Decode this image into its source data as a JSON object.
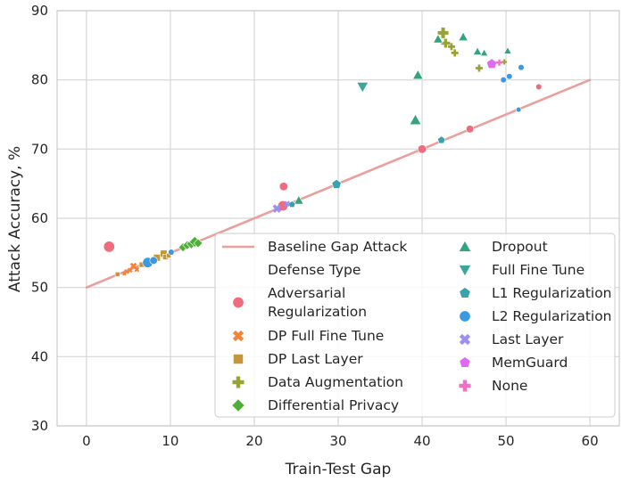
{
  "chart_data": {
    "type": "scatter",
    "xlabel": "Train-Test Gap",
    "ylabel": "Attack Accuracy, %",
    "xlim": [
      -3.5,
      63.5
    ],
    "ylim": [
      30,
      90
    ],
    "xticks": [
      0,
      10,
      20,
      30,
      40,
      50,
      60
    ],
    "yticks": [
      30,
      40,
      50,
      60,
      70,
      80,
      90
    ],
    "grid": true,
    "legend_position": "bottom-right",
    "baseline": {
      "name": "Baseline Gap Attack",
      "color": "#e9a09c",
      "points": [
        [
          0,
          50
        ],
        [
          60,
          80
        ]
      ]
    },
    "legend_header": "Defense Type",
    "series": [
      {
        "name": "Adversarial Regularization",
        "label_lines": [
          "Adversarial",
          "Regularization"
        ],
        "marker": "circle",
        "color": "#ef6b7e",
        "points": [
          [
            2.7,
            55.9,
            13
          ],
          [
            23.5,
            64.6,
            10
          ],
          [
            23.4,
            61.8,
            12
          ],
          [
            40.0,
            70.0,
            10
          ],
          [
            45.7,
            72.9,
            9
          ],
          [
            53.9,
            79.0,
            7
          ]
        ]
      },
      {
        "name": "DP Full Fine Tune",
        "label_lines": [
          "DP Full Fine Tune"
        ],
        "marker": "x",
        "color": "#f0843a",
        "points": [
          [
            4.8,
            52.3,
            6
          ],
          [
            5.2,
            52.5,
            6
          ],
          [
            5.6,
            53.1,
            8
          ],
          [
            6.0,
            52.6,
            6
          ],
          [
            4.5,
            52.0,
            5
          ]
        ]
      },
      {
        "name": "DP Last Layer",
        "label_lines": [
          "DP Last Layer"
        ],
        "marker": "square",
        "color": "#c4973a",
        "points": [
          [
            3.7,
            51.9,
            6
          ],
          [
            6.6,
            53.3,
            7
          ],
          [
            8.4,
            54.3,
            9
          ],
          [
            9.2,
            54.9,
            9
          ],
          [
            9.4,
            54.4,
            7
          ],
          [
            9.8,
            54.6,
            6
          ]
        ]
      },
      {
        "name": "Data Augmentation",
        "label_lines": [
          "Data Augmentation"
        ],
        "marker": "plus",
        "color": "#99a334",
        "points": [
          [
            42.5,
            86.8,
            12
          ],
          [
            42.8,
            85.3,
            10
          ],
          [
            43.5,
            84.8,
            8
          ],
          [
            43.9,
            83.9,
            8
          ],
          [
            46.8,
            81.7,
            8
          ],
          [
            49.8,
            82.6,
            6
          ]
        ]
      },
      {
        "name": "Differential Privacy",
        "label_lines": [
          "Differential Privacy"
        ],
        "marker": "diamond",
        "color": "#4fae3a",
        "points": [
          [
            11.5,
            55.8,
            9
          ],
          [
            12.0,
            56.1,
            9
          ],
          [
            12.5,
            56.3,
            10
          ],
          [
            12.9,
            56.6,
            11
          ],
          [
            13.3,
            56.4,
            9
          ]
        ]
      },
      {
        "name": "Dropout",
        "label_lines": [
          "Dropout"
        ],
        "marker": "triangle",
        "color": "#36a37e",
        "points": [
          [
            25.3,
            62.6,
            10
          ],
          [
            39.2,
            74.2,
            12
          ],
          [
            39.5,
            80.7,
            11
          ],
          [
            41.9,
            85.9,
            10
          ],
          [
            44.9,
            86.2,
            10
          ],
          [
            46.6,
            84.1,
            9
          ],
          [
            47.4,
            83.9,
            8
          ],
          [
            50.2,
            84.2,
            8
          ]
        ]
      },
      {
        "name": "Full Fine Tune",
        "label_lines": [
          "Full Fine Tune"
        ],
        "marker": "tri-down",
        "color": "#3aa79b",
        "points": [
          [
            32.9,
            79.0,
            12
          ]
        ]
      },
      {
        "name": "L1 Regularization",
        "label_lines": [
          "L1 Regularization"
        ],
        "marker": "pentagon",
        "color": "#3aa2ad",
        "points": [
          [
            29.8,
            64.9,
            11
          ],
          [
            42.3,
            71.3,
            9
          ],
          [
            24.5,
            62.0,
            8
          ]
        ]
      },
      {
        "name": "L2 Regularization",
        "label_lines": [
          "L2 Regularization"
        ],
        "marker": "circle",
        "color": "#3a99e0",
        "points": [
          [
            7.3,
            53.6,
            12
          ],
          [
            8.0,
            53.9,
            9
          ],
          [
            10.1,
            55.1,
            7
          ],
          [
            49.7,
            80.0,
            7
          ],
          [
            50.4,
            80.5,
            7
          ],
          [
            51.8,
            81.8,
            7
          ],
          [
            51.5,
            75.7,
            6
          ]
        ]
      },
      {
        "name": "Last Layer",
        "label_lines": [
          "Last Layer"
        ],
        "marker": "x",
        "color": "#9d8ef0",
        "points": [
          [
            22.7,
            61.4,
            10
          ],
          [
            23.9,
            62.1,
            7
          ]
        ]
      },
      {
        "name": "MemGuard",
        "label_lines": [
          "MemGuard"
        ],
        "marker": "pentagon",
        "color": "#df6bf0",
        "points": [
          [
            48.3,
            82.3,
            12
          ]
        ]
      },
      {
        "name": "None",
        "label_lines": [
          "None"
        ],
        "marker": "plus",
        "color": "#f26fc7",
        "points": [
          [
            49.2,
            82.5,
            7
          ]
        ]
      }
    ]
  }
}
